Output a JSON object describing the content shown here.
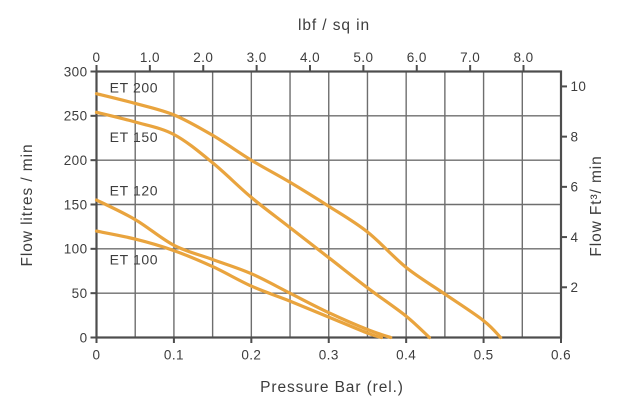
{
  "page": {
    "background": "#FFFFFF"
  },
  "chart_data": {
    "type": "line",
    "title_top": "lbf / sq in",
    "xlabel_bottom": "Pressure Bar (rel.)",
    "ylabel_left": "Flow litres / min",
    "ylabel_right": "Flow Ft³/ min",
    "x_bottom": {
      "unit": "bar",
      "min": 0,
      "max": 0.6,
      "ticks": [
        0,
        0.1,
        0.2,
        0.3,
        0.4,
        0.5,
        0.6
      ],
      "tick_labels": [
        "0",
        "0.1",
        "0.2",
        "0.3",
        "0.4",
        "0.5",
        "0.6"
      ],
      "grid_step": 0.05
    },
    "x_top": {
      "unit": "lbf/sq in",
      "ticks": [
        0,
        1,
        2,
        3,
        4,
        5,
        6,
        7,
        8
      ],
      "tick_labels": [
        "0",
        "1.0",
        "2.0",
        "3.0",
        "4.0",
        "5.0",
        "6.0",
        "7.0",
        "8.0"
      ],
      "bar_per_psi": 0.0689476
    },
    "y_left": {
      "unit": "litres/min",
      "min": 0,
      "max": 300,
      "ticks": [
        0,
        50,
        100,
        150,
        200,
        250,
        300
      ],
      "tick_labels": [
        "0",
        "50",
        "100",
        "150",
        "200",
        "250",
        "300"
      ],
      "grid_step": 50
    },
    "y_right": {
      "unit": "Ft3/min",
      "ticks": [
        2,
        4,
        6,
        8,
        10
      ],
      "tick_labels": [
        "2",
        "4",
        "6",
        "8",
        "10"
      ],
      "litres_per_ft3": 28.3168
    },
    "grid": true,
    "legend_position": "inline-curve-labels",
    "series": [
      {
        "name": "ET 200",
        "label_pos": {
          "bar": 0.017,
          "flow": 282
        },
        "points": [
          [
            0,
            275
          ],
          [
            0.05,
            264
          ],
          [
            0.1,
            251
          ],
          [
            0.15,
            228
          ],
          [
            0.2,
            200
          ],
          [
            0.25,
            175
          ],
          [
            0.3,
            148
          ],
          [
            0.35,
            119
          ],
          [
            0.4,
            79
          ],
          [
            0.45,
            49
          ],
          [
            0.5,
            19
          ],
          [
            0.522,
            0
          ]
        ]
      },
      {
        "name": "ET 150",
        "label_pos": {
          "bar": 0.017,
          "flow": 226
        },
        "points": [
          [
            0,
            254
          ],
          [
            0.05,
            243
          ],
          [
            0.1,
            229
          ],
          [
            0.15,
            197
          ],
          [
            0.2,
            158
          ],
          [
            0.25,
            124
          ],
          [
            0.3,
            90
          ],
          [
            0.35,
            56
          ],
          [
            0.4,
            24
          ],
          [
            0.43,
            0
          ]
        ]
      },
      {
        "name": "ET 120",
        "label_pos": {
          "bar": 0.017,
          "flow": 166
        },
        "points": [
          [
            0,
            155
          ],
          [
            0.05,
            133
          ],
          [
            0.1,
            104
          ],
          [
            0.15,
            88
          ],
          [
            0.2,
            72
          ],
          [
            0.25,
            50
          ],
          [
            0.3,
            28
          ],
          [
            0.35,
            9
          ],
          [
            0.38,
            0
          ]
        ]
      },
      {
        "name": "ET 100",
        "label_pos": {
          "bar": 0.017,
          "flow": 88
        },
        "points": [
          [
            0,
            120
          ],
          [
            0.05,
            111
          ],
          [
            0.1,
            98
          ],
          [
            0.15,
            80
          ],
          [
            0.2,
            58
          ],
          [
            0.25,
            41
          ],
          [
            0.3,
            23
          ],
          [
            0.35,
            5
          ],
          [
            0.368,
            0
          ]
        ]
      }
    ],
    "colors": {
      "curve": "#E9A43E",
      "grid": "#6E6E6E",
      "axis": "#4D4D4D",
      "text": "#3D3D3D",
      "background": "#FFFFFF"
    }
  }
}
